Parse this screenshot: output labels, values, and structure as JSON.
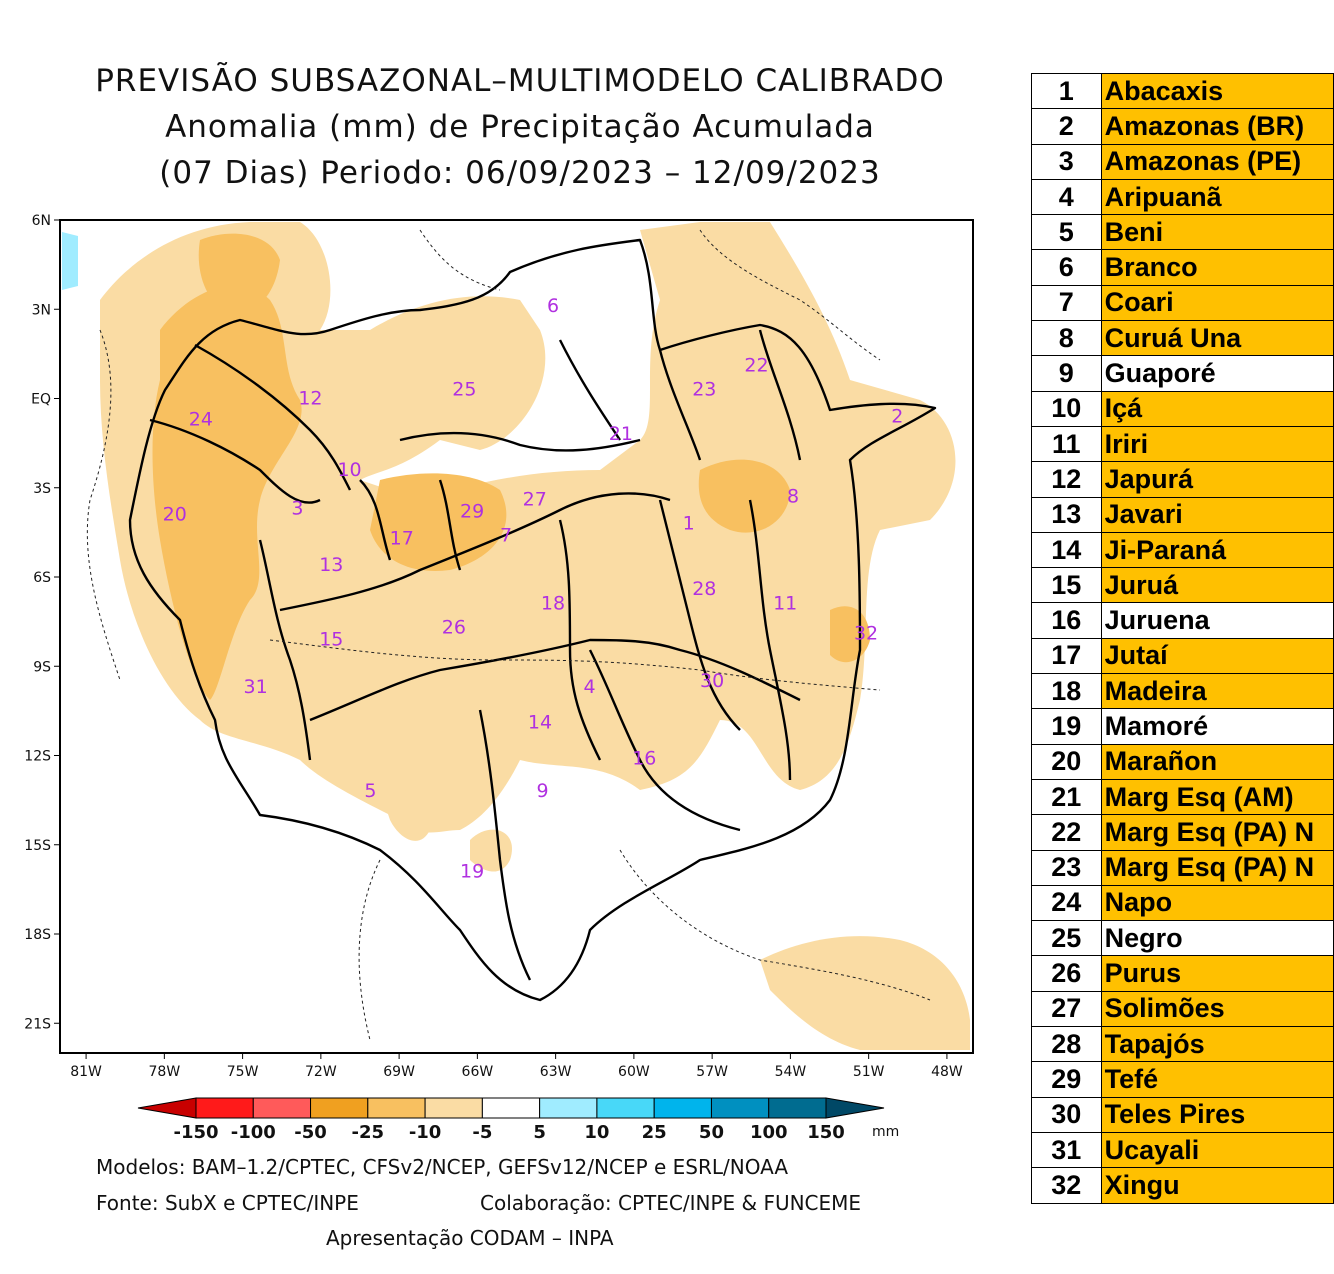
{
  "title": {
    "line1": "PREVISÃO SUBSAZONAL–MULTIMODELO CALIBRADO",
    "line2": "Anomalia (mm) de Precipitação Acumulada",
    "line3": "(07 Dias) Periodo: 06/09/2023 – 12/09/2023"
  },
  "map": {
    "lat_labels": [
      "6N",
      "3N",
      "EQ",
      "3S",
      "6S",
      "9S",
      "12S",
      "15S",
      "18S",
      "21S"
    ],
    "lon_labels": [
      "81W",
      "78W",
      "75W",
      "72W",
      "69W",
      "66W",
      "63W",
      "60W",
      "57W",
      "54W",
      "51W",
      "48W"
    ],
    "lon_range": [
      -82,
      -47
    ],
    "lat_range": [
      -22,
      6
    ],
    "basin_labels": [
      {
        "id": "1",
        "lon": -57.9,
        "lat": -4.4
      },
      {
        "id": "2",
        "lon": -49.9,
        "lat": -0.8
      },
      {
        "id": "3",
        "lon": -72.9,
        "lat": -3.9
      },
      {
        "id": "4",
        "lon": -61.7,
        "lat": -9.9
      },
      {
        "id": "5",
        "lon": -70.1,
        "lat": -13.4
      },
      {
        "id": "6",
        "lon": -63.1,
        "lat": 2.9
      },
      {
        "id": "7",
        "lon": -64.9,
        "lat": -4.8
      },
      {
        "id": "8",
        "lon": -53.9,
        "lat": -3.5
      },
      {
        "id": "9",
        "lon": -63.5,
        "lat": -13.4
      },
      {
        "id": "10",
        "lon": -70.9,
        "lat": -2.6
      },
      {
        "id": "11",
        "lon": -54.2,
        "lat": -7.1
      },
      {
        "id": "12",
        "lon": -72.4,
        "lat": -0.2
      },
      {
        "id": "13",
        "lon": -71.6,
        "lat": -5.8
      },
      {
        "id": "14",
        "lon": -63.6,
        "lat": -11.1
      },
      {
        "id": "15",
        "lon": -71.6,
        "lat": -8.3
      },
      {
        "id": "16",
        "lon": -59.6,
        "lat": -12.3
      },
      {
        "id": "17",
        "lon": -68.9,
        "lat": -4.9
      },
      {
        "id": "18",
        "lon": -63.1,
        "lat": -7.1
      },
      {
        "id": "19",
        "lon": -66.2,
        "lat": -16.1
      },
      {
        "id": "20",
        "lon": -77.6,
        "lat": -4.1
      },
      {
        "id": "21",
        "lon": -60.5,
        "lat": -1.4
      },
      {
        "id": "22",
        "lon": -55.3,
        "lat": 0.9
      },
      {
        "id": "23",
        "lon": -57.3,
        "lat": 0.1
      },
      {
        "id": "24",
        "lon": -76.6,
        "lat": -0.9
      },
      {
        "id": "25",
        "lon": -66.5,
        "lat": 0.1
      },
      {
        "id": "26",
        "lon": -66.9,
        "lat": -7.9
      },
      {
        "id": "27",
        "lon": -63.8,
        "lat": -3.6
      },
      {
        "id": "28",
        "lon": -57.3,
        "lat": -6.6
      },
      {
        "id": "29",
        "lon": -66.2,
        "lat": -4.0
      },
      {
        "id": "30",
        "lon": -57.0,
        "lat": -9.7
      },
      {
        "id": "31",
        "lon": -74.5,
        "lat": -9.9
      },
      {
        "id": "32",
        "lon": -51.1,
        "lat": -8.1
      }
    ]
  },
  "colorbar": {
    "labels": [
      "-150",
      "-100",
      "-50",
      "-25",
      "-10",
      "-5",
      "5",
      "10",
      "25",
      "50",
      "100",
      "150"
    ],
    "unit": "mm",
    "colors": [
      "#c80000",
      "#ff1a1a",
      "#ff5a5a",
      "#f0a020",
      "#f8c060",
      "#fadca4",
      "#ffffff",
      "#a0ecff",
      "#48d8f8",
      "#00b4ec",
      "#0090c0",
      "#006c90",
      "#004866"
    ],
    "bin_edges": [
      -150,
      -100,
      -50,
      -25,
      -10,
      -5,
      5,
      10,
      25,
      50,
      100,
      150
    ]
  },
  "footer": {
    "models": "Modelos: BAM–1.2/CPTEC, CFSv2/NCEP, GEFSv12/NCEP e ESRL/NOAA",
    "source": "Fonte: SubX e CPTEC/INPE",
    "collab": "Colaboração: CPTEC/INPE & FUNCEME",
    "presentation": "Apresentação CODAM – INPA"
  },
  "basins": [
    {
      "n": "1",
      "name": "Abacaxis",
      "color": "#ffc000"
    },
    {
      "n": "2",
      "name": "Amazonas (BR)",
      "color": "#ffc000"
    },
    {
      "n": "3",
      "name": "Amazonas (PE)",
      "color": "#ffc000"
    },
    {
      "n": "4",
      "name": "Aripuanã",
      "color": "#ffc000"
    },
    {
      "n": "5",
      "name": "Beni",
      "color": "#ffc000"
    },
    {
      "n": "6",
      "name": "Branco",
      "color": "#ffc000"
    },
    {
      "n": "7",
      "name": "Coari",
      "color": "#ffc000"
    },
    {
      "n": "8",
      "name": "Curuá Una",
      "color": "#ffc000"
    },
    {
      "n": "9",
      "name": "Guaporé",
      "color": "#ffffff"
    },
    {
      "n": "10",
      "name": "Içá",
      "color": "#ffc000"
    },
    {
      "n": "11",
      "name": "Iriri",
      "color": "#ffc000"
    },
    {
      "n": "12",
      "name": "Japurá",
      "color": "#ffc000"
    },
    {
      "n": "13",
      "name": "Javari",
      "color": "#ffc000"
    },
    {
      "n": "14",
      "name": "Ji-Paraná",
      "color": "#ffc000"
    },
    {
      "n": "15",
      "name": "Juruá",
      "color": "#ffc000"
    },
    {
      "n": "16",
      "name": "Juruena",
      "color": "#ffffff"
    },
    {
      "n": "17",
      "name": "Jutaí",
      "color": "#ffc000"
    },
    {
      "n": "18",
      "name": "Madeira",
      "color": "#ffc000"
    },
    {
      "n": "19",
      "name": "Mamoré",
      "color": "#ffffff"
    },
    {
      "n": "20",
      "name": "Marañon",
      "color": "#ffc000"
    },
    {
      "n": "21",
      "name": "Marg Esq (AM)",
      "color": "#ffc000"
    },
    {
      "n": "22",
      "name": "Marg Esq (PA) N",
      "color": "#ffc000"
    },
    {
      "n": "23",
      "name": "Marg Esq (PA) N",
      "color": "#ffc000"
    },
    {
      "n": "24",
      "name": "Napo",
      "color": "#ffc000"
    },
    {
      "n": "25",
      "name": "Negro",
      "color": "#ffffff"
    },
    {
      "n": "26",
      "name": "Purus",
      "color": "#ffc000"
    },
    {
      "n": "27",
      "name": "Solimões",
      "color": "#ffc000"
    },
    {
      "n": "28",
      "name": "Tapajós",
      "color": "#ffc000"
    },
    {
      "n": "29",
      "name": "Tefé",
      "color": "#ffc000"
    },
    {
      "n": "30",
      "name": "Teles Pires",
      "color": "#ffc000"
    },
    {
      "n": "31",
      "name": "Ucayali",
      "color": "#ffc000"
    },
    {
      "n": "32",
      "name": "Xingu",
      "color": "#ffc000"
    }
  ]
}
